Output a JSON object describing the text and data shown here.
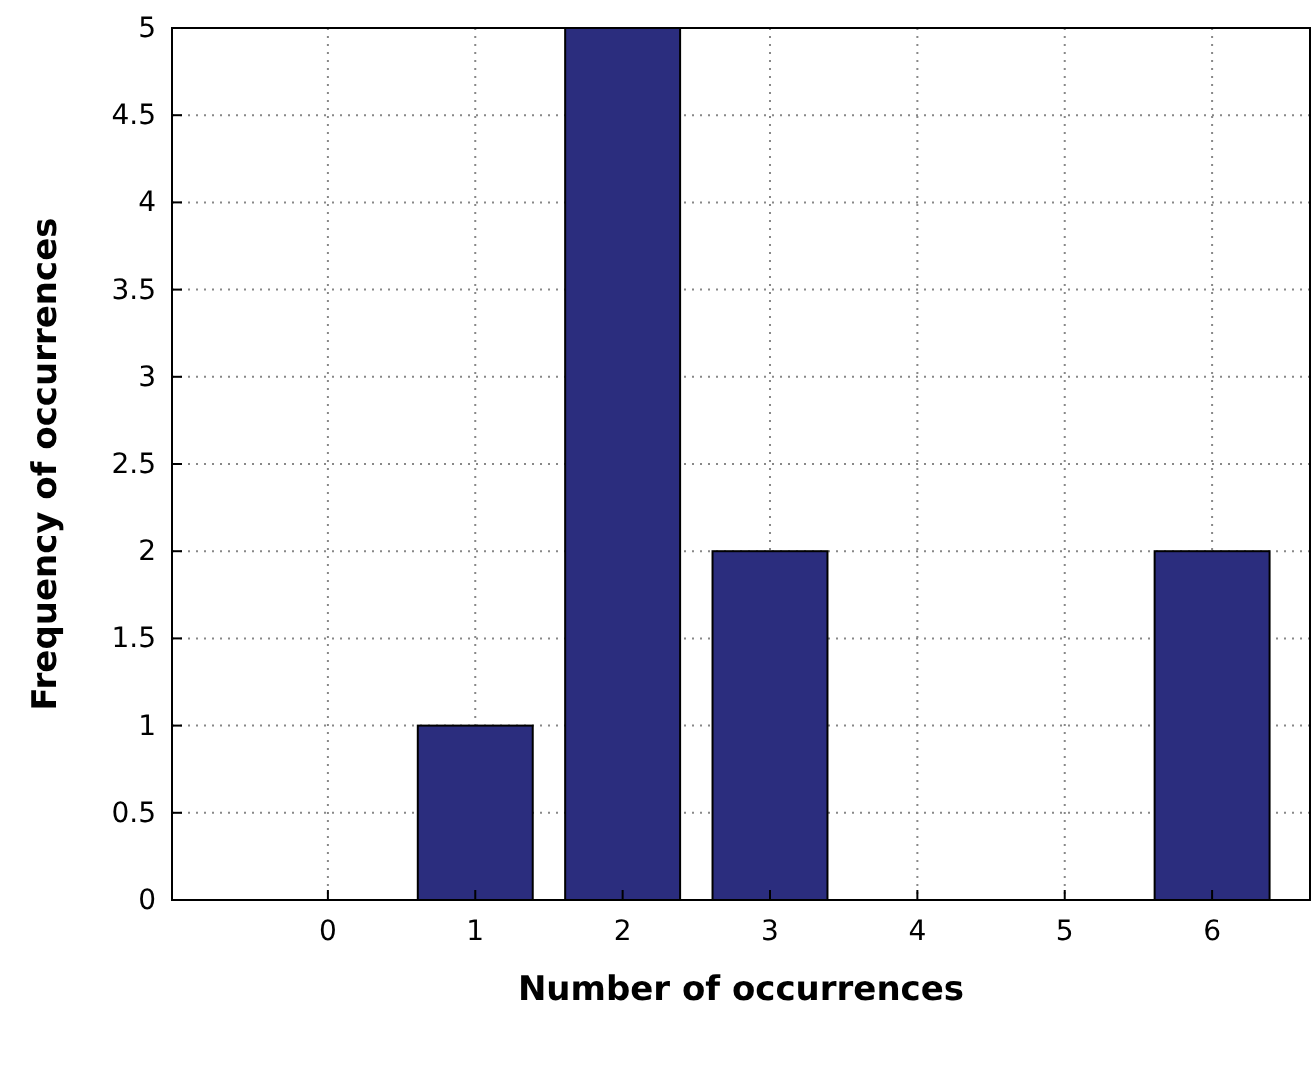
{
  "chart_data": {
    "type": "bar",
    "xlabel": "Number of occurrences",
    "ylabel": "Frequency of occurrences",
    "categories": [
      "0",
      "1",
      "2",
      "3",
      "4",
      "5",
      "6"
    ],
    "values": [
      0,
      1,
      5,
      2,
      0,
      0,
      2
    ],
    "color": "#2b2d7e",
    "ylim": [
      0,
      5
    ],
    "yticks": [
      0,
      0.5,
      1,
      1.5,
      2,
      2.5,
      3,
      3.5,
      4,
      4.5,
      5
    ],
    "grid": true
  }
}
